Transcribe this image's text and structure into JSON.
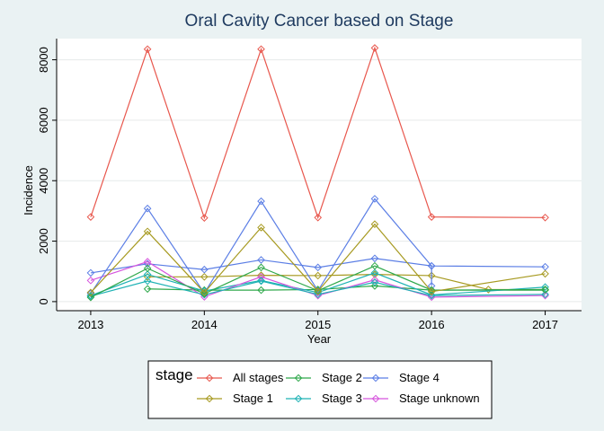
{
  "chart_data": {
    "type": "line",
    "title": "Oral Cavity Cancer based on Stage",
    "xlabel": "Year",
    "ylabel": "Incidence",
    "xlim": [
      2012.7,
      2017.32
    ],
    "ylim": [
      -300,
      8700
    ],
    "xticks": [
      "2013",
      "2014",
      "2015",
      "2016",
      "2017"
    ],
    "yticks": [
      "0",
      "2000",
      "4000",
      "6000",
      "8000"
    ],
    "grid": true,
    "legend_title": "stage",
    "legend_position": "bottom",
    "x": [
      2013,
      2013.5,
      2014,
      2014.5,
      2015,
      2015.5,
      2016,
      2017
    ],
    "series": [
      {
        "name": "All stages",
        "color": "#e8574d",
        "values": [
          2800,
          8350,
          2770,
          8350,
          2780,
          8390,
          2800,
          2780
        ]
      },
      {
        "name": "Stage 1",
        "color": "#a79a21",
        "values": [
          300,
          2320,
          300,
          2450,
          340,
          2560,
          330,
          920
        ]
      },
      {
        "name": "Stage 2",
        "color": "#2ea84a",
        "values": [
          140,
          1100,
          260,
          1130,
          360,
          1180,
          380,
          400
        ]
      },
      {
        "name": "Stage 3",
        "color": "#1fb2b5",
        "values": [
          180,
          680,
          230,
          680,
          240,
          640,
          200,
          240
        ]
      },
      {
        "name": "Stage 4",
        "color": "#5b7ee5",
        "values": [
          270,
          3080,
          280,
          3320,
          360,
          3400,
          1180,
          1150
        ]
      },
      {
        "name": "Stage unknown",
        "color": "#d655dd",
        "values": [
          700,
          1320,
          160,
          820,
          200,
          720,
          150,
          200
        ]
      }
    ],
    "extra_points": [
      {
        "series": "Stage 1",
        "x": [
          2013.5,
          2014,
          2014.5,
          2015,
          2015.5,
          2016,
          2016.5,
          2017
        ],
        "values": [
          820,
          820,
          870,
          860,
          900,
          860,
          400,
          400
        ]
      },
      {
        "series": "Stage 4",
        "x": [
          2013,
          2013.5,
          2014,
          2014.5,
          2015,
          2015.5,
          2016,
          2016
        ],
        "values": [
          950,
          1250,
          1060,
          1380,
          1130,
          1430,
          1180,
          520
        ]
      },
      {
        "series": "Stage 2",
        "x": [
          2013.5,
          2014,
          2014.5,
          2015,
          2015.5,
          2016,
          2017
        ],
        "values": [
          420,
          380,
          380,
          400,
          520,
          380,
          380
        ]
      },
      {
        "series": "Stage 3",
        "x": [
          2013,
          2013.5,
          2014,
          2014.5,
          2015,
          2015.5,
          2016,
          2017
        ],
        "values": [
          200,
          900,
          350,
          700,
          300,
          950,
          220,
          480
        ]
      }
    ]
  }
}
